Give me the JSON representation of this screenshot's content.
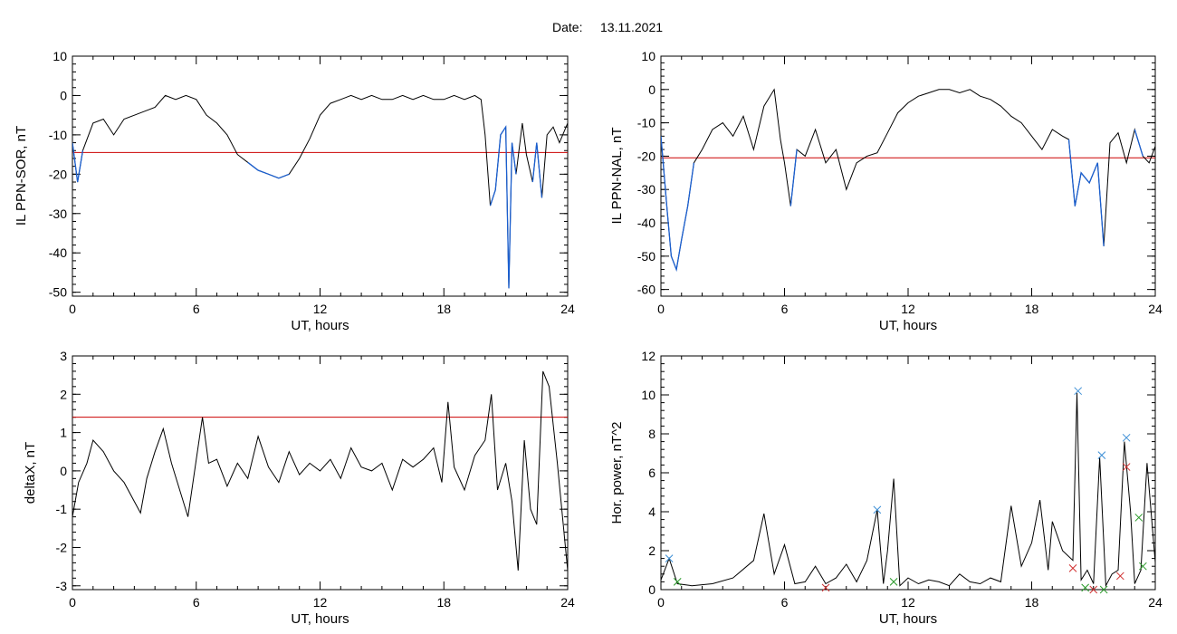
{
  "header": {
    "date_label": "Date:",
    "date_value": "13.11.2021"
  },
  "colors": {
    "trace": "#000000",
    "highlight": "#1a5fd0",
    "threshold": "#cc0000",
    "marker_blue": "#3d8fd6",
    "marker_red": "#d03030",
    "marker_green": "#2a9a2a"
  },
  "chart_data": [
    {
      "id": "sor",
      "type": "line",
      "title": "",
      "xlabel": "UT, hours",
      "ylabel": "IL PPN-SOR, nT",
      "xlim": [
        0,
        24
      ],
      "ylim": [
        -51,
        10
      ],
      "xticks": [
        "0",
        "6",
        "12",
        "18",
        "24"
      ],
      "yticks": [
        "10",
        "0",
        "-10",
        "-20",
        "-30",
        "-40",
        "-50"
      ],
      "threshold": -14.5,
      "x": [
        0,
        0.25,
        0.5,
        1,
        1.5,
        2,
        2.5,
        3,
        3.5,
        4,
        4.5,
        5,
        5.5,
        6,
        6.5,
        7,
        7.5,
        8,
        8.5,
        9,
        9.5,
        10,
        10.5,
        11,
        11.5,
        12,
        12.5,
        13,
        13.5,
        14,
        14.5,
        15,
        15.5,
        16,
        16.5,
        17,
        17.5,
        18,
        18.5,
        19,
        19.5,
        19.8,
        20,
        20.25,
        20.5,
        20.75,
        21,
        21.15,
        21.3,
        21.5,
        21.8,
        22,
        22.3,
        22.5,
        22.75,
        23,
        23.3,
        23.6,
        24
      ],
      "values": [
        -12,
        -22,
        -14,
        -7,
        -6,
        -10,
        -6,
        -5,
        -4,
        -3,
        0,
        -1,
        0,
        -1,
        -5,
        -7,
        -10,
        -15,
        -17,
        -19,
        -20,
        -21,
        -20,
        -16,
        -11,
        -5,
        -2,
        -1,
        0,
        -1,
        0,
        -1,
        -1,
        0,
        -1,
        0,
        -1,
        -1,
        0,
        -1,
        0,
        -1,
        -10,
        -28,
        -24,
        -10,
        -8,
        -49,
        -12,
        -20,
        -7,
        -15,
        -22,
        -12,
        -26,
        -10,
        -8,
        -12,
        -7
      ],
      "highlight_ranges": [
        [
          0,
          0.5
        ],
        [
          8.2,
          10.9
        ],
        [
          20.1,
          21.5
        ],
        [
          22.3,
          22.9
        ]
      ]
    },
    {
      "id": "nal",
      "type": "line",
      "title": "",
      "xlabel": "UT, hours",
      "ylabel": "IL PPN-NAL, nT",
      "xlim": [
        0,
        24
      ],
      "ylim": [
        -62,
        10
      ],
      "xticks": [
        "0",
        "6",
        "12",
        "18",
        "24"
      ],
      "yticks": [
        "10",
        "0",
        "-10",
        "-20",
        "-30",
        "-40",
        "-50",
        "-60"
      ],
      "threshold": -20.5,
      "x": [
        0,
        0.3,
        0.5,
        0.75,
        1,
        1.3,
        1.6,
        2,
        2.5,
        3,
        3.5,
        4,
        4.5,
        5,
        5.5,
        5.8,
        6,
        6.3,
        6.6,
        7,
        7.5,
        8,
        8.5,
        9,
        9.5,
        10,
        10.5,
        11,
        11.5,
        12,
        12.5,
        13,
        13.5,
        14,
        14.5,
        15,
        15.5,
        16,
        16.5,
        17,
        17.5,
        18,
        18.5,
        19,
        19.5,
        19.8,
        20.1,
        20.4,
        20.8,
        21.2,
        21.5,
        21.8,
        22.2,
        22.6,
        23,
        23.4,
        23.7,
        24
      ],
      "values": [
        -14,
        -36,
        -50,
        -54,
        -45,
        -35,
        -22,
        -18,
        -12,
        -10,
        -14,
        -8,
        -18,
        -5,
        0,
        -15,
        -22,
        -35,
        -18,
        -20,
        -12,
        -22,
        -18,
        -30,
        -22,
        -20,
        -19,
        -13,
        -7,
        -4,
        -2,
        -1,
        0,
        0,
        -1,
        0,
        -2,
        -3,
        -5,
        -8,
        -10,
        -14,
        -18,
        -12,
        -14,
        -15,
        -35,
        -25,
        -28,
        -22,
        -47,
        -16,
        -13,
        -22,
        -12,
        -20,
        -22,
        -17
      ],
      "highlight_ranges": [
        [
          0,
          1.6
        ],
        [
          6.1,
          6.6
        ],
        [
          8.6,
          9.4
        ],
        [
          19.8,
          21.5
        ],
        [
          22.9,
          23.6
        ]
      ]
    },
    {
      "id": "deltax",
      "type": "line",
      "title": "",
      "xlabel": "UT, hours",
      "ylabel": "deltaX, nT",
      "xlim": [
        0,
        24
      ],
      "ylim": [
        -3.1,
        3
      ],
      "xticks": [
        "0",
        "6",
        "12",
        "18",
        "24"
      ],
      "yticks": [
        "3",
        "2",
        "1",
        "0",
        "-1",
        "-2",
        "-3"
      ],
      "threshold": 1.4,
      "x": [
        0,
        0.3,
        0.7,
        1,
        1.5,
        2,
        2.5,
        3,
        3.3,
        3.6,
        4,
        4.4,
        4.8,
        5.2,
        5.6,
        6,
        6.3,
        6.6,
        7,
        7.5,
        8,
        8.5,
        9,
        9.5,
        10,
        10.5,
        11,
        11.5,
        12,
        12.5,
        13,
        13.5,
        14,
        14.5,
        15,
        15.5,
        16,
        16.5,
        17,
        17.5,
        17.9,
        18.2,
        18.5,
        19,
        19.5,
        20,
        20.3,
        20.6,
        21,
        21.3,
        21.6,
        21.9,
        22.2,
        22.5,
        22.8,
        23.1,
        23.5,
        24
      ],
      "values": [
        -1.2,
        -0.3,
        0.2,
        0.8,
        0.5,
        0,
        -0.3,
        -0.8,
        -1.1,
        -0.2,
        0.5,
        1.1,
        0.2,
        -0.5,
        -1.2,
        0.3,
        1.4,
        0.2,
        0.3,
        -0.4,
        0.2,
        -0.2,
        0.9,
        0.1,
        -0.3,
        0.5,
        -0.1,
        0.2,
        0,
        0.3,
        -0.2,
        0.6,
        0.1,
        0,
        0.2,
        -0.5,
        0.3,
        0.1,
        0.3,
        0.6,
        -0.3,
        1.8,
        0.1,
        -0.5,
        0.4,
        0.8,
        2.0,
        -0.5,
        0.2,
        -0.8,
        -2.6,
        0.8,
        -1.0,
        -1.4,
        2.6,
        2.2,
        0.2,
        -2.6
      ],
      "highlight_ranges": []
    },
    {
      "id": "power",
      "type": "line",
      "title": "",
      "xlabel": "UT, hours",
      "ylabel": "Hor. power, nT^2",
      "xlim": [
        0,
        24
      ],
      "ylim": [
        0,
        12
      ],
      "xticks": [
        "0",
        "6",
        "12",
        "18",
        "24"
      ],
      "yticks": [
        "12",
        "10",
        "8",
        "6",
        "4",
        "2",
        "0"
      ],
      "threshold": null,
      "x": [
        0,
        0.4,
        0.8,
        1.5,
        2.5,
        3.5,
        4.5,
        5,
        5.5,
        6,
        6.5,
        7,
        7.5,
        8,
        8.5,
        9,
        9.5,
        10,
        10.5,
        10.8,
        11,
        11.3,
        11.6,
        12,
        12.5,
        13,
        13.5,
        14,
        14.5,
        15,
        15.5,
        16,
        16.5,
        17,
        17.5,
        18,
        18.4,
        18.8,
        19,
        19.5,
        20,
        20.2,
        20.4,
        20.7,
        21,
        21.3,
        21.6,
        21.9,
        22.2,
        22.5,
        22.8,
        23,
        23.3,
        23.6,
        24
      ],
      "values": [
        0.5,
        1.6,
        0.3,
        0.2,
        0.3,
        0.6,
        1.5,
        3.9,
        0.8,
        2.3,
        0.3,
        0.4,
        1.2,
        0.3,
        0.6,
        1.3,
        0.4,
        1.5,
        4.1,
        0.3,
        2.0,
        5.7,
        0.2,
        0.6,
        0.3,
        0.5,
        0.4,
        0.2,
        0.8,
        0.4,
        0.3,
        0.6,
        0.4,
        4.3,
        1.2,
        2.4,
        4.6,
        1.0,
        3.5,
        2.0,
        1.5,
        10.1,
        0.5,
        1.0,
        0.3,
        6.8,
        0.2,
        0.8,
        1.0,
        7.6,
        4.0,
        0.3,
        1.0,
        6.5,
        1.4
      ],
      "highlight_ranges": [],
      "markers": [
        {
          "x": 0.4,
          "y": 1.6,
          "color": "blue"
        },
        {
          "x": 10.5,
          "y": 4.1,
          "color": "blue"
        },
        {
          "x": 20.25,
          "y": 10.2,
          "color": "blue"
        },
        {
          "x": 21.4,
          "y": 6.9,
          "color": "blue"
        },
        {
          "x": 22.6,
          "y": 7.8,
          "color": "blue"
        },
        {
          "x": 8.0,
          "y": 0.1,
          "color": "red"
        },
        {
          "x": 20.0,
          "y": 1.1,
          "color": "red"
        },
        {
          "x": 21.0,
          "y": 0.0,
          "color": "red"
        },
        {
          "x": 22.3,
          "y": 0.7,
          "color": "red"
        },
        {
          "x": 22.6,
          "y": 6.3,
          "color": "red"
        },
        {
          "x": 0.8,
          "y": 0.4,
          "color": "green"
        },
        {
          "x": 11.3,
          "y": 0.4,
          "color": "green"
        },
        {
          "x": 20.6,
          "y": 0.1,
          "color": "green"
        },
        {
          "x": 21.5,
          "y": 0.0,
          "color": "green"
        },
        {
          "x": 23.2,
          "y": 3.7,
          "color": "green"
        },
        {
          "x": 23.4,
          "y": 1.2,
          "color": "green"
        }
      ]
    }
  ]
}
